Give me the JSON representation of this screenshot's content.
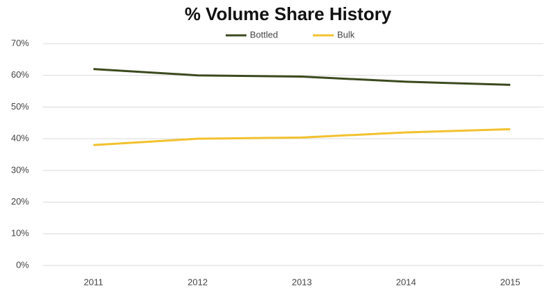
{
  "chart_data": {
    "type": "line",
    "title": "% Volume Share History",
    "categories": [
      "2011",
      "2012",
      "2013",
      "2014",
      "2015"
    ],
    "series": [
      {
        "name": "Bottled",
        "color": "#3b4a1e",
        "values": [
          62,
          60,
          59.6,
          58,
          57
        ]
      },
      {
        "name": "Bulk",
        "color": "#f2c12e",
        "values": [
          38,
          40,
          40.4,
          42,
          43
        ]
      }
    ],
    "ylim": [
      0,
      70
    ],
    "yticks": [
      {
        "value": 0,
        "label": "0%"
      },
      {
        "value": 10,
        "label": "10%"
      },
      {
        "value": 20,
        "label": "20%"
      },
      {
        "value": 30,
        "label": "30%"
      },
      {
        "value": 40,
        "label": "40%"
      },
      {
        "value": 50,
        "label": "50%"
      },
      {
        "value": 60,
        "label": "60%"
      },
      {
        "value": 70,
        "label": "70%"
      }
    ],
    "grid": true,
    "legend": "top"
  }
}
